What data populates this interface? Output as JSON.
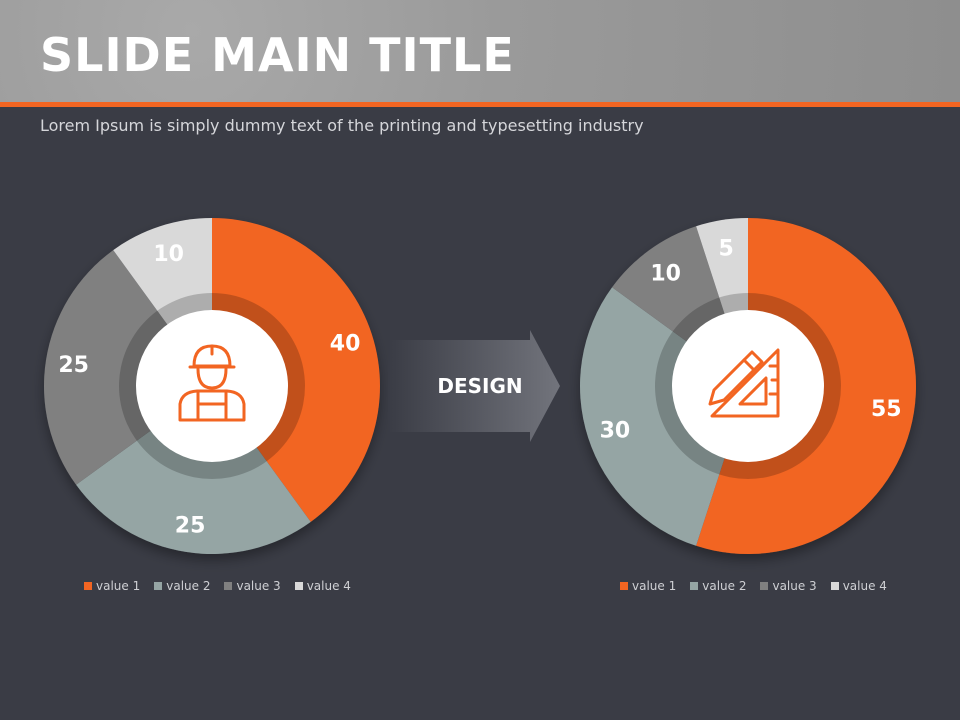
{
  "slide": {
    "title": "SLIDE MAIN TITLE",
    "subtitle": "Lorem Ipsum is simply dummy text of the printing and typesetting industry",
    "arrow_label": "DESIGN"
  },
  "colors": {
    "accent": "#f26522",
    "background": "#3a3c45",
    "series": [
      "#f26522",
      "#95a5a4",
      "#808080",
      "#d9d9d9"
    ]
  },
  "icons": {
    "left": "worker-icon",
    "right": "ruler-pencil-icon"
  },
  "chart_data": [
    {
      "type": "pie",
      "categories": [
        "value 1",
        "value 2",
        "value 3",
        "value 4"
      ],
      "values": [
        40,
        25,
        25,
        10
      ],
      "legend": "bottom"
    },
    {
      "type": "pie",
      "categories": [
        "value 1",
        "value 2",
        "value 3",
        "value 4"
      ],
      "values": [
        55,
        30,
        10,
        5
      ],
      "legend": "bottom"
    }
  ]
}
